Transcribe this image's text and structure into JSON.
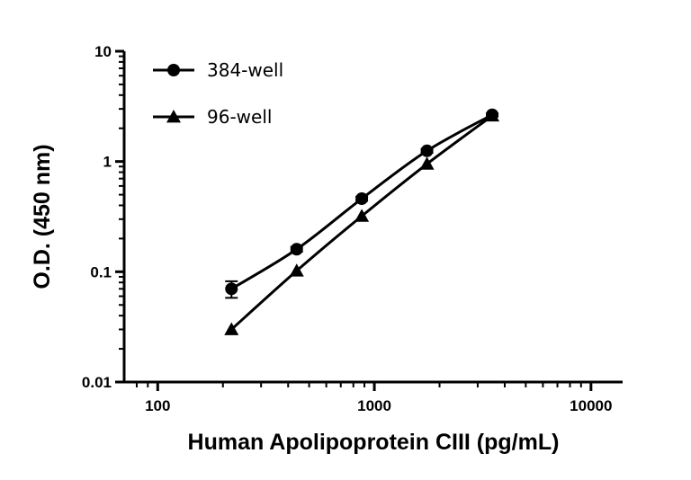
{
  "chart_data": {
    "type": "line",
    "xlabel": "Human Apolipoprotein CIII (pg/mL)",
    "ylabel": "O.D. (450 nm)",
    "xscale": "log",
    "yscale": "log",
    "xlim": [
      70,
      14000
    ],
    "ylim": [
      0.01,
      10
    ],
    "x_ticks": [
      100,
      1000,
      10000
    ],
    "x_tick_labels": [
      "100",
      "1000",
      "10000"
    ],
    "y_ticks": [
      0.01,
      0.1,
      1,
      10
    ],
    "y_tick_labels": [
      "0.01",
      "0.1",
      "1",
      "10"
    ],
    "grid": false,
    "legend_position": "top-left",
    "series": [
      {
        "name": "384-well",
        "marker": "circle",
        "color": "#000000",
        "x": [
          219,
          438,
          875,
          1750,
          3500
        ],
        "y": [
          0.07,
          0.16,
          0.46,
          1.25,
          2.65
        ],
        "error": [
          0.012,
          0.008,
          0.02,
          0.05,
          0.08
        ]
      },
      {
        "name": "96-well",
        "marker": "triangle",
        "color": "#000000",
        "x": [
          219,
          438,
          875,
          1750,
          3500
        ],
        "y": [
          0.03,
          0.102,
          0.32,
          0.95,
          2.6
        ],
        "error": [
          0,
          0,
          0,
          0,
          0
        ]
      }
    ]
  }
}
